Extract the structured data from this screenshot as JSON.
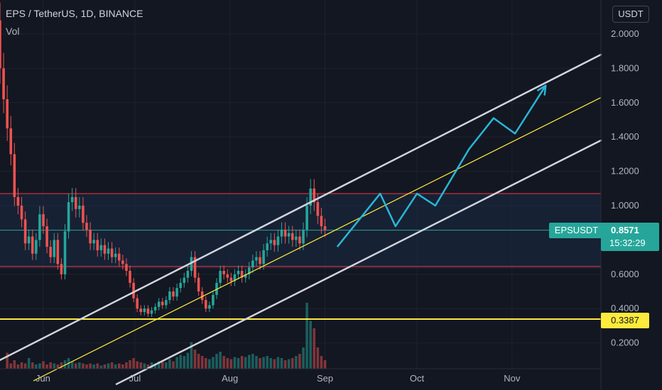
{
  "header": {
    "symbol_title": "EPS / TetherUS, 1D, BINANCE",
    "volume_label": "Vol",
    "currency_button": "USDT"
  },
  "price_tags": {
    "symbol": "EPSUSDT",
    "last_price": "0.8571",
    "countdown": "15:32:29",
    "support_level": "0.3387"
  },
  "colors": {
    "background": "#131722",
    "up": "#26a69a",
    "down": "#ef5350",
    "channel": "#d1d4dc",
    "midline": "#ffeb3b",
    "projection": "#29b6d6",
    "resistance": "#f23645",
    "current": "#26a69a"
  },
  "chart_data": {
    "type": "candlestick",
    "title": "EPS / TetherUS, 1D, BINANCE",
    "y_axis": {
      "ticks": [
        "2.0000",
        "1.8000",
        "1.6000",
        "1.4000",
        "1.2000",
        "1.0000",
        "0.6000",
        "0.4000",
        "0.2000"
      ],
      "tick_values": [
        2.0,
        1.8,
        1.6,
        1.4,
        1.2,
        1.0,
        0.6,
        0.4,
        0.2
      ],
      "range": [
        0.0,
        2.1
      ]
    },
    "x_axis": {
      "labels": [
        "Jun",
        "Jul",
        "Aug",
        "Sep",
        "Oct",
        "Nov"
      ],
      "label_dates": [
        "2021-06-01",
        "2021-07-01",
        "2021-08-01",
        "2021-09-01",
        "2021-10-01",
        "2021-11-01"
      ],
      "range": [
        "2021-05-18",
        "2021-11-30"
      ]
    },
    "candles_daily_close": [
      1.8,
      1.62,
      1.45,
      1.3,
      1.05,
      1.0,
      0.92,
      0.78,
      0.82,
      0.72,
      0.8,
      0.95,
      0.88,
      0.76,
      0.7,
      0.8,
      0.66,
      0.6,
      0.85,
      1.02,
      1.05,
      0.98,
      1.0,
      0.9,
      0.86,
      0.78,
      0.8,
      0.74,
      0.77,
      0.72,
      0.75,
      0.7,
      0.72,
      0.68,
      0.66,
      0.62,
      0.55,
      0.46,
      0.4,
      0.38,
      0.4,
      0.37,
      0.39,
      0.41,
      0.44,
      0.42,
      0.45,
      0.5,
      0.47,
      0.52,
      0.55,
      0.58,
      0.62,
      0.7,
      0.58,
      0.5,
      0.45,
      0.4,
      0.42,
      0.48,
      0.55,
      0.62,
      0.6,
      0.58,
      0.56,
      0.6,
      0.62,
      0.58,
      0.6,
      0.64,
      0.68,
      0.7,
      0.66,
      0.74,
      0.78,
      0.8,
      0.77,
      0.82,
      0.86,
      0.82,
      0.84,
      0.8,
      0.82,
      0.78,
      0.86,
      1.0,
      1.1,
      1.02,
      0.94,
      0.88,
      0.86
    ],
    "volume_series": [
      0.0,
      0.0,
      0.15,
      0.05,
      0.08,
      0.04,
      0.06,
      0.05,
      0.1,
      0.06,
      0.04,
      0.05,
      0.07,
      0.04,
      0.06,
      0.05,
      0.04,
      0.06,
      0.08,
      0.1,
      0.07,
      0.05,
      0.06,
      0.05,
      0.04,
      0.05,
      0.04,
      0.05,
      0.03,
      0.04,
      0.05,
      0.06,
      0.04,
      0.05,
      0.04,
      0.06,
      0.08,
      0.1,
      0.07,
      0.06,
      0.05,
      0.04,
      0.06,
      0.05,
      0.07,
      0.08,
      0.06,
      0.09,
      0.07,
      0.11,
      0.13,
      0.12,
      0.15,
      0.25,
      0.18,
      0.14,
      0.12,
      0.1,
      0.09,
      0.11,
      0.14,
      0.16,
      0.12,
      0.1,
      0.09,
      0.11,
      0.1,
      0.12,
      0.11,
      0.13,
      0.14,
      0.12,
      0.1,
      0.11,
      0.12,
      0.1,
      0.09,
      0.11,
      0.1,
      0.08,
      0.09,
      0.1,
      0.12,
      0.14,
      0.2,
      0.62,
      0.45,
      0.38,
      0.2,
      0.12,
      0.08
    ],
    "volume_scale": 1.0,
    "horizontal_lines": [
      {
        "name": "resistance-upper",
        "price": 1.07,
        "color": "#f23645"
      },
      {
        "name": "current-price",
        "price": 0.8571,
        "color": "#26a69a"
      },
      {
        "name": "resistance-lower",
        "price": 0.645,
        "color": "#f23645"
      },
      {
        "name": "support",
        "price": 0.3387,
        "color": "#ffeb3b"
      }
    ],
    "channel": {
      "upper": {
        "from": [
          "2021-05-18",
          0.1
        ],
        "to": [
          "2021-11-30",
          1.88
        ]
      },
      "middle": {
        "from": [
          "2021-05-29",
          -0.02
        ],
        "to": [
          "2021-11-30",
          1.63
        ]
      },
      "lower": {
        "from": [
          "2021-06-25",
          -0.04
        ],
        "to": [
          "2021-11-30",
          1.38
        ]
      }
    },
    "projection_path": [
      [
        "2021-09-05",
        0.76
      ],
      [
        "2021-09-19",
        1.07
      ],
      [
        "2021-09-24",
        0.88
      ],
      [
        "2021-10-01",
        1.07
      ],
      [
        "2021-10-07",
        1.0
      ],
      [
        "2021-10-18",
        1.33
      ],
      [
        "2021-10-26",
        1.51
      ],
      [
        "2021-11-02",
        1.42
      ],
      [
        "2021-11-12",
        1.7
      ]
    ],
    "candle_range": [
      "2021-05-18",
      "2021-09-01"
    ],
    "legend": "none",
    "grid": true
  }
}
